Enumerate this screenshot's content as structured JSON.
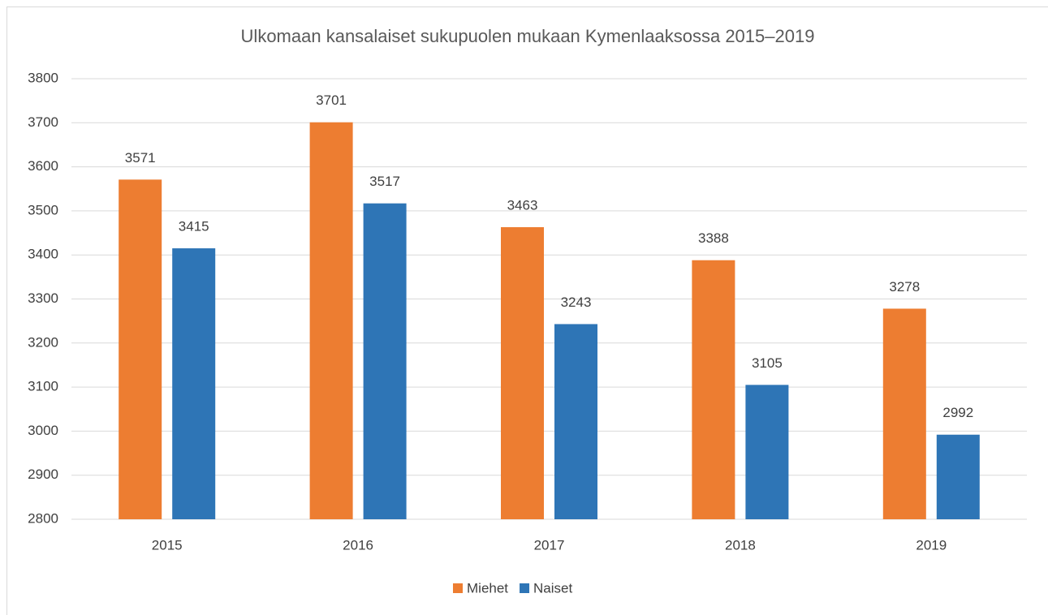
{
  "chart_data": {
    "type": "bar",
    "title": "Ulkomaan kansalaiset sukupuolen mukaan Kymenlaaksossa 2015–2019",
    "categories": [
      "2015",
      "2016",
      "2017",
      "2018",
      "2019"
    ],
    "series": [
      {
        "name": "Miehet",
        "color": "#ed7d31",
        "values": [
          3571,
          3701,
          3463,
          3388,
          3278
        ]
      },
      {
        "name": "Naiset",
        "color": "#2e75b6",
        "values": [
          3415,
          3517,
          3243,
          3105,
          2992
        ]
      }
    ],
    "ylim": [
      2800,
      3800
    ],
    "yticks": [
      2800,
      2900,
      3000,
      3100,
      3200,
      3300,
      3400,
      3500,
      3600,
      3700,
      3800
    ],
    "grid": true,
    "legend": "bottom"
  }
}
